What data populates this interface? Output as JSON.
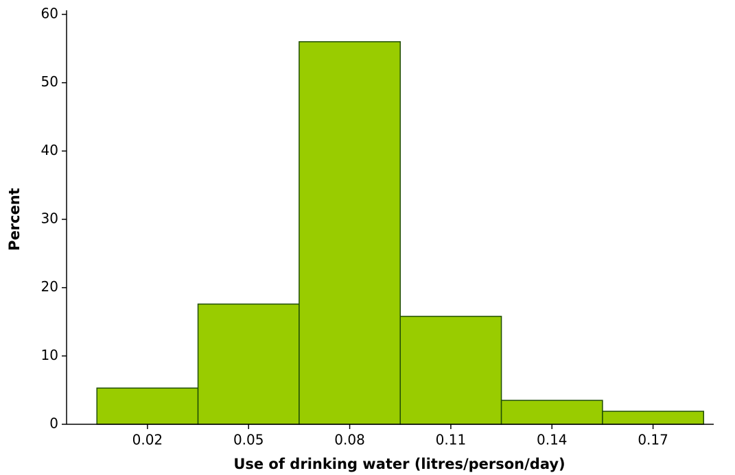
{
  "chart_data": {
    "type": "histogram",
    "xlabel": "Use of drinking water (litres/person/day)",
    "ylabel": "Percent",
    "bins": [
      0.005,
      0.035,
      0.065,
      0.095,
      0.125,
      0.155,
      0.185
    ],
    "values": [
      5.3,
      17.6,
      56,
      15.8,
      3.5,
      1.9
    ],
    "color": "#99cc00",
    "edgecolor": "#1f4d05",
    "xlim": [
      -0.004,
      0.188
    ],
    "ylim": [
      0,
      60
    ],
    "xticks": [
      0.02,
      0.05,
      0.08,
      0.11,
      0.14,
      0.17
    ],
    "yticks": [
      0,
      10,
      20,
      30,
      40,
      50,
      60
    ]
  }
}
